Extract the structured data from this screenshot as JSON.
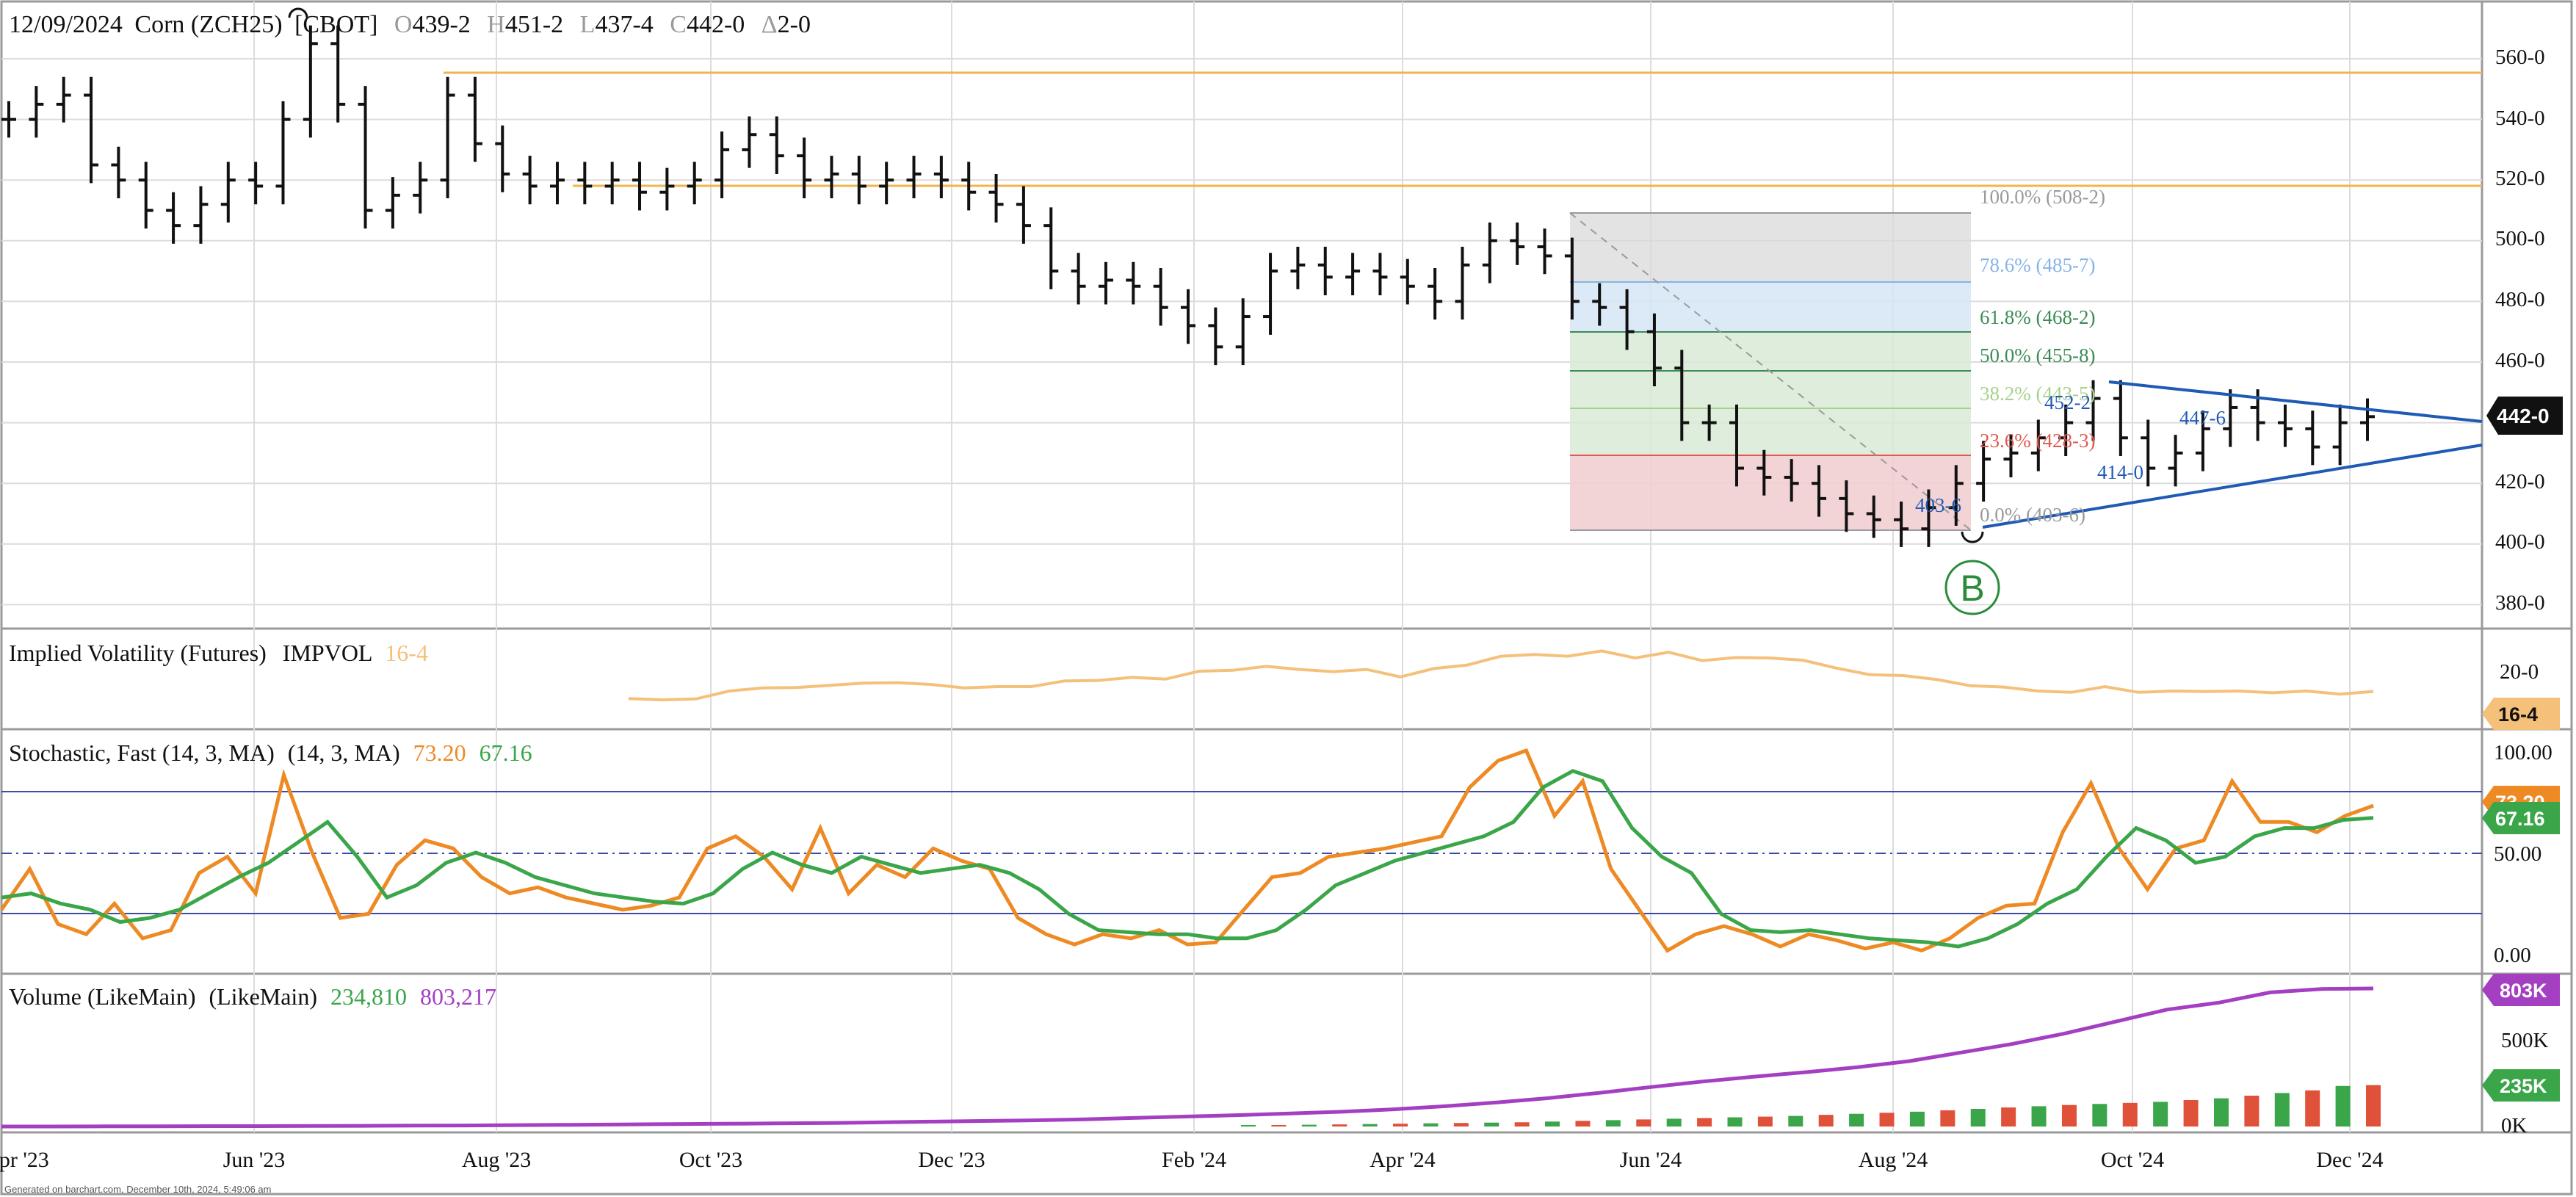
{
  "header": {
    "date": "12/09/2024",
    "name": "Corn (ZCH25)",
    "exchange": "[CBOT]",
    "o_key": "O",
    "o_val": "439-2",
    "h_key": "H",
    "h_val": "451-2",
    "l_key": "L",
    "l_val": "437-4",
    "c_key": "C",
    "c_val": "442-0",
    "d_key": "Δ",
    "d_val": "2-0"
  },
  "price_axis": [
    "560-0",
    "540-0",
    "520-0",
    "500-0",
    "480-0",
    "460-0",
    "440-0",
    "420-0",
    "400-0",
    "380-0"
  ],
  "last_price_badge": "442-0",
  "fib": [
    {
      "label": "100.0% (508-2)",
      "color": "#9a9a9a"
    },
    {
      "label": "78.6% (485-7)",
      "color": "#86b4e6"
    },
    {
      "label": "61.8% (468-2)",
      "color": "#3d8b57"
    },
    {
      "label": "50.0% (455-8)",
      "color": "#3d8b57"
    },
    {
      "label": "38.2% (443-5)",
      "color": "#a9d08e"
    },
    {
      "label": "23.6% (428-3)",
      "color": "#e05a4f"
    },
    {
      "label": "0.0% (403-6)",
      "color": "#9a9a9a"
    }
  ],
  "annotations": {
    "low_label": "403-6",
    "tri_high": "452-2",
    "tri_high2": "447-6",
    "tri_low": "414-0",
    "marker": "B"
  },
  "iv_panel": {
    "title": "Implied Volatility (Futures)",
    "key": "IMPVOL",
    "value": "16-4",
    "axis": [
      "20-0"
    ],
    "badge": "16-4",
    "color": "#f5c07a"
  },
  "stoch_panel": {
    "title": "Stochastic, Fast (14, 3, MA)",
    "params": "(14, 3, MA)",
    "k_value": "73.20",
    "d_value": "67.16",
    "axis": [
      "100.00",
      "50.00",
      "0.00"
    ],
    "badge_k": "73.20",
    "badge_d": "67.16",
    "k_color": "#ee8a24",
    "d_color": "#3aa649"
  },
  "vol_panel": {
    "title": "Volume (LikeMain)",
    "params": "(LikeMain)",
    "vol_value": "234,810",
    "oi_value": "803,217",
    "axis": [
      "500K",
      "0K"
    ],
    "badge_oi": "803K",
    "badge_vol": "235K",
    "oi_color": "#a53fc2",
    "vol_color": "#3aa649"
  },
  "x_axis": [
    "Apr '23",
    "Jun '23",
    "Aug '23",
    "Oct '23",
    "Dec '23",
    "Feb '24",
    "Apr '24",
    "Jun '24",
    "Aug '24",
    "Oct '24",
    "Dec '24"
  ],
  "footer": "Generated on barchart.com, December 10th, 2024, 5:49:06 am",
  "chart_data": [
    {
      "type": "ohlc",
      "title": "Corn (ZCH25) [CBOT]",
      "ylim": [
        370,
        570
      ],
      "weekly_close": [
        540,
        545,
        548,
        525,
        520,
        510,
        505,
        512,
        520,
        518,
        540,
        565,
        545,
        510,
        515,
        520,
        548,
        532,
        522,
        518,
        520,
        518,
        520,
        516,
        518,
        520,
        530,
        535,
        528,
        520,
        522,
        518,
        520,
        522,
        520,
        516,
        512,
        505,
        490,
        485,
        487,
        485,
        478,
        472,
        465,
        475,
        490,
        492,
        488,
        490,
        488,
        485,
        480,
        492,
        500,
        498,
        495,
        480,
        478,
        470,
        458,
        440,
        440,
        425,
        422,
        420,
        415,
        410,
        408,
        405,
        412,
        420,
        428,
        430,
        435,
        440,
        448,
        435,
        425,
        430,
        438,
        445,
        440,
        438,
        432,
        440,
        442
      ],
      "tri_upper": [
        452,
        442
      ],
      "tri_lower": [
        404,
        430
      ]
    },
    {
      "type": "line",
      "title": "Implied Volatility (Futures)",
      "series": [
        {
          "name": "IMPVOL",
          "values": [
            14.8,
            14.5,
            14.7,
            16.5,
            17.2,
            17.3,
            17.8,
            18.3,
            18.4,
            18.0,
            17.2,
            17.5,
            17.5,
            18.8,
            18.9,
            19.6,
            19.2,
            21.0,
            21.2,
            22.1,
            21.4,
            20.9,
            21.4,
            19.7,
            21.6,
            22.4,
            24.4,
            24.8,
            24.4,
            25.6,
            24.0,
            25.3,
            23.4,
            24.1,
            24.0,
            23.5,
            21.7,
            20.2,
            20.0,
            19.1,
            17.7,
            17.4,
            16.5,
            16.2,
            17.5,
            16.2,
            16.5,
            16.4,
            16.5,
            16.1,
            16.5,
            15.8,
            16.4
          ]
        }
      ],
      "ylim": [
        10,
        30
      ]
    },
    {
      "type": "line",
      "title": "Stochastic, Fast (14, 3, MA)",
      "ylim": [
        0,
        100
      ],
      "series": [
        {
          "name": "73.20",
          "values": [
            22,
            42,
            15,
            10,
            25,
            8,
            12,
            40,
            48,
            30,
            88,
            50,
            18,
            20,
            44,
            56,
            52,
            38,
            30,
            33,
            28,
            25,
            22,
            24,
            28,
            52,
            58,
            48,
            32,
            62,
            30,
            44,
            38,
            52,
            46,
            42,
            18,
            10,
            5,
            10,
            8,
            12,
            5,
            6,
            22,
            38,
            40,
            48,
            50,
            52,
            55,
            58,
            82,
            95,
            100,
            68,
            85,
            42,
            22,
            2,
            10,
            14,
            10,
            4,
            10,
            7,
            3,
            6,
            2,
            8,
            18,
            24,
            25,
            60,
            84,
            52,
            32,
            52,
            56,
            85,
            65,
            65,
            60,
            68,
            73
          ]
        },
        {
          "name": "67.16",
          "values": [
            28,
            30,
            25,
            22,
            16,
            18,
            22,
            30,
            38,
            45,
            55,
            65,
            48,
            28,
            34,
            45,
            50,
            45,
            38,
            34,
            30,
            28,
            26,
            25,
            30,
            42,
            50,
            44,
            40,
            48,
            44,
            40,
            42,
            44,
            40,
            32,
            20,
            12,
            11,
            10,
            10,
            8,
            8,
            12,
            22,
            34,
            40,
            46,
            50,
            54,
            58,
            65,
            82,
            90,
            85,
            62,
            48,
            40,
            20,
            12,
            11,
            12,
            10,
            8,
            7,
            6,
            4,
            8,
            15,
            25,
            32,
            48,
            62,
            56,
            45,
            48,
            58,
            62,
            62,
            66,
            67
          ]
        }
      ]
    },
    {
      "type": "bar",
      "title": "Volume (LikeMain)",
      "series": [
        {
          "name": "234,810",
          "values": [
            5,
            8,
            10,
            12,
            14,
            16,
            18,
            20,
            22,
            24,
            28,
            32,
            36,
            40,
            44,
            48,
            52,
            56,
            60,
            66,
            72,
            78,
            84,
            92,
            100,
            108,
            115,
            122,
            128,
            134,
            140,
            150,
            160,
            175,
            190,
            205,
            230,
            235
          ]
        },
        {
          "name": "803,217",
          "values": [
            0,
            0,
            1,
            1,
            2,
            2,
            3,
            4,
            5,
            6,
            8,
            10,
            12,
            14,
            16,
            18,
            20,
            24,
            28,
            32,
            36,
            42,
            50,
            58,
            66,
            76,
            86,
            100,
            118,
            140,
            165,
            196,
            230,
            262,
            290,
            316,
            345,
            380,
            430,
            480,
            540,
            610,
            680,
            720,
            780,
            800,
            803
          ]
        }
      ]
    }
  ]
}
